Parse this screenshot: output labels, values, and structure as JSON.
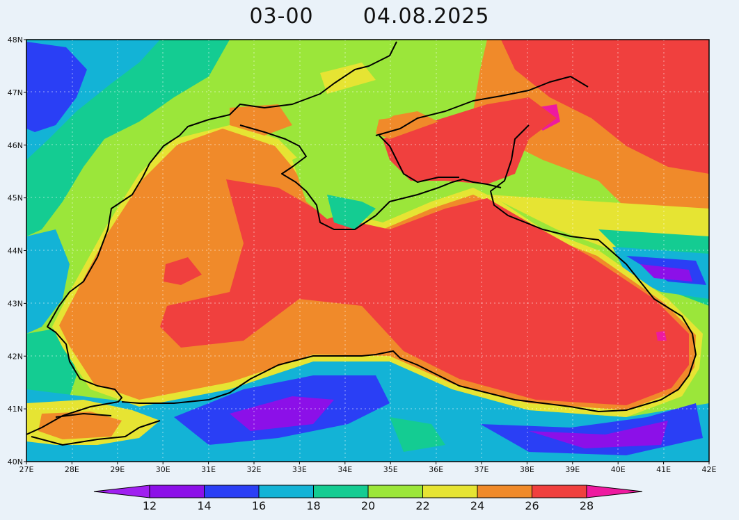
{
  "title": {
    "time": "03-00",
    "date": "04.08.2025"
  },
  "map": {
    "lon_range": [
      27,
      42
    ],
    "lat_range": [
      40,
      48
    ],
    "x_ticks": [
      "27E",
      "28E",
      "29E",
      "30E",
      "31E",
      "32E",
      "33E",
      "34E",
      "35E",
      "36E",
      "37E",
      "38E",
      "39E",
      "40E",
      "41E",
      "42E"
    ],
    "y_ticks": [
      "40N",
      "41N",
      "42N",
      "43N",
      "44N",
      "45N",
      "46N",
      "47N",
      "48N"
    ],
    "grid": "dotted"
  },
  "colorbar": {
    "labels": [
      "12",
      "14",
      "16",
      "18",
      "20",
      "22",
      "24",
      "26",
      "28"
    ],
    "colors": [
      "#a020f0",
      "#8c10e8",
      "#2a3ff5",
      "#13b3d6",
      "#14cc92",
      "#9be63a",
      "#e6e433",
      "#f08a2a",
      "#f0403e",
      "#ee1aa0"
    ],
    "levels": [
      12,
      14,
      16,
      18,
      20,
      22,
      24,
      26,
      28
    ]
  }
}
